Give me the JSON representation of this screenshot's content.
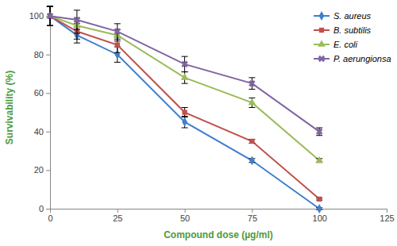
{
  "chart_data": {
    "type": "line",
    "x_label": "Compound dose (µg/ml)",
    "y_label": "Survivability (%)",
    "x": [
      0,
      10,
      25,
      50,
      75,
      100
    ],
    "series": [
      {
        "name": "S. aureus",
        "color": "#3f7fcc",
        "marker": "diamond",
        "values": [
          100,
          90,
          80,
          45,
          25,
          0
        ],
        "errors": [
          5,
          4,
          4,
          3,
          1,
          0.5
        ]
      },
      {
        "name": "B. subtilis",
        "color": "#c0504d",
        "marker": "square",
        "values": [
          100,
          92,
          85,
          50,
          35,
          5
        ],
        "errors": [
          5,
          4,
          4,
          2.5,
          1,
          0.5
        ]
      },
      {
        "name": "E. coli",
        "color": "#9bbb59",
        "marker": "triangle",
        "values": [
          100,
          95,
          90,
          68,
          55,
          25
        ],
        "errors": [
          5,
          4,
          3,
          3,
          2.5,
          1
        ]
      },
      {
        "name": "P. aerungionsa",
        "color": "#8064a2",
        "marker": "x",
        "values": [
          100,
          98,
          92,
          75,
          65,
          40
        ],
        "errors": [
          5,
          5,
          4,
          4,
          3,
          2
        ]
      }
    ],
    "xlim": [
      0,
      125
    ],
    "xticks": [
      0,
      25,
      50,
      75,
      100,
      125
    ],
    "ylim": [
      0,
      105
    ],
    "yticks": [
      0,
      20,
      40,
      60,
      80,
      100
    ],
    "grid": false,
    "legend": "upper right"
  }
}
